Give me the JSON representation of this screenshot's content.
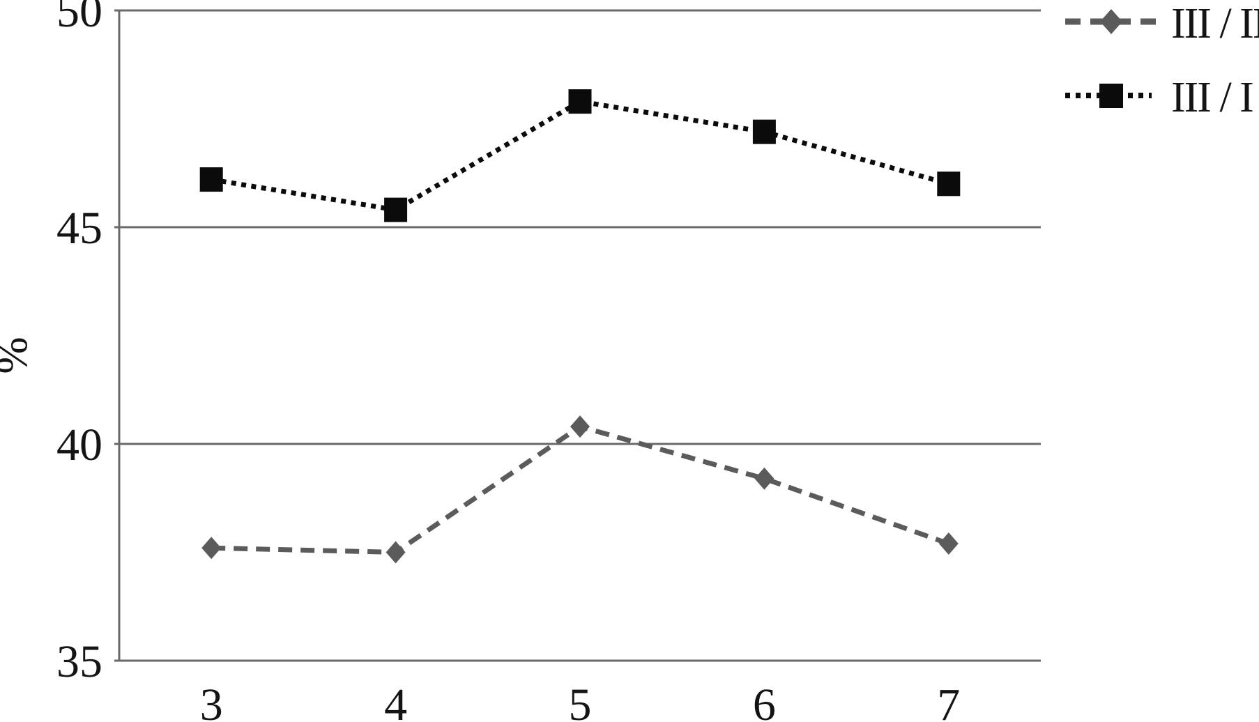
{
  "chart_data": {
    "type": "line",
    "title": "",
    "xlabel": "",
    "ylabel": "%",
    "x": [
      3,
      4,
      5,
      6,
      7
    ],
    "series": [
      {
        "name": "III / II",
        "values": [
          37.6,
          37.5,
          40.4,
          39.2,
          37.7
        ],
        "color": "#5b5b5b",
        "line_style": "dashed",
        "marker": "diamond"
      },
      {
        "name": "III / I",
        "values": [
          46.1,
          45.4,
          47.9,
          47.2,
          46.0
        ],
        "color": "#0b0b0b",
        "line_style": "dotted",
        "marker": "square"
      }
    ],
    "ylim": [
      35,
      50
    ],
    "yticks": [
      35,
      40,
      45,
      50
    ],
    "grid": "horizontal-gridlines",
    "legend_position": "top-right"
  },
  "colors": {
    "grid": "#6a6a6a",
    "axis": "#6a6a6a",
    "text": "#141414",
    "background": "#ffffff"
  }
}
